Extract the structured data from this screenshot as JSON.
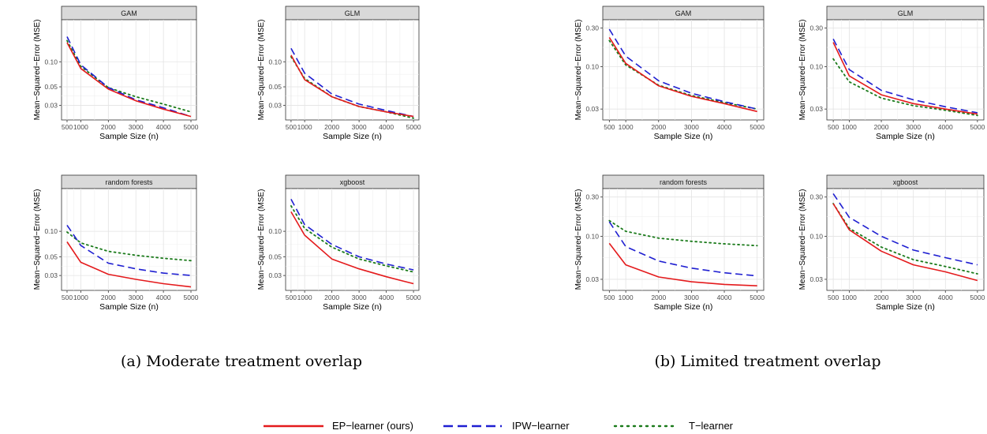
{
  "captions": [
    "(a) Moderate treatment overlap",
    "(b) Limited treatment overlap"
  ],
  "colors": {
    "ep": "#e41a1c",
    "ipw": "#1f1fd1",
    "t": "#1a7a1a",
    "strip": "#d9d9d9"
  },
  "legend": [
    {
      "label": "EP−learner (ours)",
      "style": "solid",
      "color_key": "ep"
    },
    {
      "label": "IPW−learner",
      "style": "dashed",
      "color_key": "ipw"
    },
    {
      "label": "T−learner",
      "style": "dotted",
      "color_key": "t"
    }
  ],
  "chart_data": [
    {
      "type": "line",
      "panel_group": "a",
      "title": "GAM",
      "xlabel": "Sample Size (n)",
      "ylabel": "Mean−Squared−Error (MSE)",
      "yscale": "log",
      "x": [
        500,
        1000,
        2000,
        3000,
        4000,
        5000
      ],
      "xticks": [
        500,
        1000,
        2000,
        3000,
        4000,
        5000
      ],
      "yticks": [
        0.03,
        0.05,
        0.1
      ],
      "ylim": [
        0.02,
        0.32
      ],
      "series": [
        {
          "name": "EP−learner (ours)",
          "values": [
            0.17,
            0.083,
            0.047,
            0.034,
            0.027,
            0.022
          ]
        },
        {
          "name": "IPW−learner",
          "values": [
            0.2,
            0.092,
            0.049,
            0.035,
            0.028,
            0.022
          ]
        },
        {
          "name": "T−learner",
          "values": [
            0.18,
            0.088,
            0.049,
            0.038,
            0.031,
            0.025
          ]
        }
      ]
    },
    {
      "type": "line",
      "panel_group": "a",
      "title": "GLM",
      "xlabel": "Sample Size (n)",
      "ylabel": "Mean−Squared−Error (MSE)",
      "yscale": "log",
      "x": [
        500,
        1000,
        2000,
        3000,
        4000,
        5000
      ],
      "xticks": [
        500,
        1000,
        2000,
        3000,
        4000,
        5000
      ],
      "yticks": [
        0.03,
        0.05,
        0.1
      ],
      "ylim": [
        0.02,
        0.32
      ],
      "series": [
        {
          "name": "EP−learner (ours)",
          "values": [
            0.12,
            0.061,
            0.038,
            0.029,
            0.025,
            0.022
          ]
        },
        {
          "name": "IPW−learner",
          "values": [
            0.145,
            0.073,
            0.041,
            0.031,
            0.026,
            0.022
          ]
        },
        {
          "name": "T−learner",
          "values": [
            0.115,
            0.063,
            0.038,
            0.029,
            0.025,
            0.021
          ]
        }
      ]
    },
    {
      "type": "line",
      "panel_group": "a",
      "title": "random forests",
      "xlabel": "Sample Size (n)",
      "ylabel": "Mean−Squared−Error (MSE)",
      "yscale": "log",
      "x": [
        500,
        1000,
        2000,
        3000,
        4000,
        5000
      ],
      "xticks": [
        500,
        1000,
        2000,
        3000,
        4000,
        5000
      ],
      "yticks": [
        0.03,
        0.05,
        0.1
      ],
      "ylim": [
        0.02,
        0.32
      ],
      "series": [
        {
          "name": "EP−learner (ours)",
          "values": [
            0.075,
            0.043,
            0.031,
            0.027,
            0.024,
            0.022
          ]
        },
        {
          "name": "IPW−learner",
          "values": [
            0.118,
            0.068,
            0.042,
            0.036,
            0.032,
            0.03
          ]
        },
        {
          "name": "T−learner",
          "values": [
            0.098,
            0.073,
            0.058,
            0.052,
            0.048,
            0.045
          ]
        }
      ]
    },
    {
      "type": "line",
      "panel_group": "a",
      "title": "xgboost",
      "xlabel": "Sample Size (n)",
      "ylabel": "Mean−Squared−Error (MSE)",
      "yscale": "log",
      "x": [
        500,
        1000,
        2000,
        3000,
        4000,
        5000
      ],
      "xticks": [
        500,
        1000,
        2000,
        3000,
        4000,
        5000
      ],
      "yticks": [
        0.03,
        0.05,
        0.1
      ],
      "ylim": [
        0.02,
        0.32
      ],
      "series": [
        {
          "name": "EP−learner (ours)",
          "values": [
            0.17,
            0.09,
            0.047,
            0.036,
            0.029,
            0.024
          ]
        },
        {
          "name": "IPW−learner",
          "values": [
            0.24,
            0.12,
            0.07,
            0.05,
            0.041,
            0.035
          ]
        },
        {
          "name": "T−learner",
          "values": [
            0.2,
            0.108,
            0.065,
            0.047,
            0.039,
            0.033
          ]
        }
      ]
    },
    {
      "type": "line",
      "panel_group": "b",
      "title": "GAM",
      "xlabel": "Sample Size (n)",
      "ylabel": "Mean−Squared−Error (MSE)",
      "yscale": "log",
      "x": [
        500,
        1000,
        2000,
        3000,
        4000,
        5000
      ],
      "xticks": [
        500,
        1000,
        2000,
        3000,
        4000,
        5000
      ],
      "yticks": [
        0.03,
        0.1,
        0.3
      ],
      "ylim": [
        0.022,
        0.38
      ],
      "series": [
        {
          "name": "EP−learner (ours)",
          "values": [
            0.23,
            0.11,
            0.058,
            0.043,
            0.035,
            0.028
          ]
        },
        {
          "name": "IPW−learner",
          "values": [
            0.29,
            0.135,
            0.067,
            0.047,
            0.037,
            0.03
          ]
        },
        {
          "name": "T−learner",
          "values": [
            0.21,
            0.105,
            0.059,
            0.044,
            0.036,
            0.03
          ]
        }
      ]
    },
    {
      "type": "line",
      "panel_group": "b",
      "title": "GLM",
      "xlabel": "Sample Size (n)",
      "ylabel": "Mean−Squared−Error (MSE)",
      "yscale": "log",
      "x": [
        500,
        1000,
        2000,
        3000,
        4000,
        5000
      ],
      "xticks": [
        500,
        1000,
        2000,
        3000,
        4000,
        5000
      ],
      "yticks": [
        0.03,
        0.1,
        0.3
      ],
      "ylim": [
        0.022,
        0.38
      ],
      "series": [
        {
          "name": "EP−learner (ours)",
          "values": [
            0.2,
            0.077,
            0.045,
            0.035,
            0.03,
            0.026
          ]
        },
        {
          "name": "IPW−learner",
          "values": [
            0.22,
            0.092,
            0.051,
            0.039,
            0.032,
            0.027
          ]
        },
        {
          "name": "T−learner",
          "values": [
            0.125,
            0.065,
            0.041,
            0.033,
            0.029,
            0.025
          ]
        }
      ]
    },
    {
      "type": "line",
      "panel_group": "b",
      "title": "random forests",
      "xlabel": "Sample Size (n)",
      "ylabel": "Mean−Squared−Error (MSE)",
      "yscale": "log",
      "x": [
        500,
        1000,
        2000,
        3000,
        4000,
        5000
      ],
      "xticks": [
        500,
        1000,
        2000,
        3000,
        4000,
        5000
      ],
      "yticks": [
        0.03,
        0.1,
        0.3
      ],
      "ylim": [
        0.022,
        0.38
      ],
      "series": [
        {
          "name": "EP−learner (ours)",
          "values": [
            0.082,
            0.045,
            0.032,
            0.028,
            0.026,
            0.025
          ]
        },
        {
          "name": "IPW−learner",
          "values": [
            0.15,
            0.075,
            0.05,
            0.041,
            0.036,
            0.033
          ]
        },
        {
          "name": "T−learner",
          "values": [
            0.155,
            0.115,
            0.095,
            0.087,
            0.081,
            0.077
          ]
        }
      ]
    },
    {
      "type": "line",
      "panel_group": "b",
      "title": "xgboost",
      "xlabel": "Sample Size (n)",
      "ylabel": "Mean−Squared−Error (MSE)",
      "yscale": "log",
      "x": [
        500,
        1000,
        2000,
        3000,
        4000,
        5000
      ],
      "xticks": [
        500,
        1000,
        2000,
        3000,
        4000,
        5000
      ],
      "yticks": [
        0.03,
        0.1,
        0.3
      ],
      "ylim": [
        0.022,
        0.38
      ],
      "series": [
        {
          "name": "EP−learner (ours)",
          "values": [
            0.25,
            0.12,
            0.066,
            0.045,
            0.037,
            0.029
          ]
        },
        {
          "name": "IPW−learner",
          "values": [
            0.33,
            0.17,
            0.1,
            0.068,
            0.055,
            0.045
          ]
        },
        {
          "name": "T−learner",
          "values": [
            0.25,
            0.125,
            0.074,
            0.052,
            0.043,
            0.035
          ]
        }
      ]
    }
  ]
}
